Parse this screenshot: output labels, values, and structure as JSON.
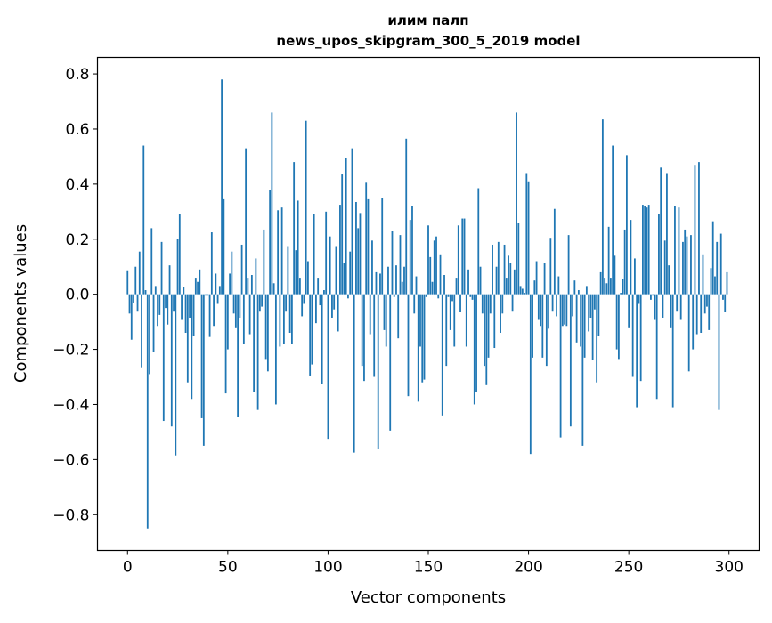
{
  "chart_data": {
    "type": "bar",
    "title_lines": [
      "илим палп",
      "news_upos_skipgram_300_5_2019 model"
    ],
    "xlabel": "Vector components",
    "ylabel": "Components values",
    "xlim": [
      -15,
      315
    ],
    "ylim": [
      -0.93,
      0.86
    ],
    "xticks": [
      0,
      50,
      100,
      150,
      200,
      250,
      300
    ],
    "xtick_labels": [
      "0",
      "50",
      "100",
      "150",
      "200",
      "250",
      "300"
    ],
    "yticks": [
      0.8,
      0.6,
      0.4,
      0.2,
      0.0,
      -0.2,
      -0.4,
      -0.6,
      -0.8
    ],
    "ytick_labels": [
      "0.8",
      "0.6",
      "0.4",
      "0.2",
      "0.0",
      "−0.2",
      "−0.4",
      "−0.6",
      "−0.8"
    ],
    "grid": false,
    "bar_color": "#1f77b4",
    "values": [
      0.087,
      -0.07,
      -0.165,
      -0.03,
      0.1,
      -0.06,
      0.155,
      -0.265,
      0.54,
      0.015,
      -0.85,
      -0.29,
      0.24,
      -0.21,
      0.03,
      -0.115,
      -0.075,
      0.19,
      -0.46,
      -0.05,
      -0.11,
      0.105,
      -0.48,
      -0.06,
      -0.585,
      0.2,
      0.29,
      -0.09,
      0.025,
      -0.14,
      -0.32,
      -0.085,
      -0.38,
      -0.15,
      0.06,
      0.045,
      0.09,
      -0.45,
      -0.55,
      -0.005,
      -0.005,
      -0.155,
      0.225,
      -0.115,
      0.075,
      -0.035,
      0.03,
      0.78,
      0.345,
      -0.36,
      -0.2,
      0.075,
      0.155,
      -0.07,
      -0.12,
      -0.445,
      -0.085,
      0.18,
      -0.18,
      0.53,
      0.06,
      -0.145,
      0.07,
      -0.355,
      0.13,
      -0.42,
      -0.06,
      -0.045,
      0.235,
      -0.235,
      -0.28,
      0.38,
      0.66,
      0.04,
      -0.4,
      0.305,
      -0.19,
      0.315,
      -0.18,
      -0.06,
      0.175,
      -0.14,
      -0.18,
      0.48,
      0.16,
      0.34,
      0.06,
      -0.08,
      -0.035,
      0.63,
      0.12,
      -0.295,
      -0.255,
      0.29,
      -0.105,
      0.06,
      -0.04,
      -0.325,
      0.015,
      0.3,
      -0.525,
      0.21,
      -0.085,
      -0.055,
      0.175,
      -0.135,
      0.325,
      0.435,
      0.115,
      0.495,
      -0.015,
      0.155,
      0.53,
      -0.575,
      0.335,
      0.24,
      0.295,
      -0.26,
      -0.315,
      0.405,
      0.345,
      -0.145,
      0.195,
      -0.3,
      0.08,
      -0.56,
      0.075,
      0.35,
      -0.13,
      -0.19,
      0.1,
      -0.495,
      0.23,
      -0.01,
      0.105,
      -0.16,
      0.215,
      0.045,
      0.1,
      0.565,
      -0.37,
      0.27,
      0.32,
      -0.07,
      0.065,
      -0.39,
      -0.19,
      -0.32,
      -0.31,
      -0.01,
      0.25,
      0.135,
      0.045,
      0.195,
      0.21,
      -0.015,
      0.145,
      -0.44,
      0.07,
      -0.26,
      -0.01,
      -0.13,
      -0.025,
      -0.19,
      0.06,
      0.25,
      -0.065,
      0.275,
      0.275,
      -0.19,
      0.09,
      -0.01,
      -0.02,
      -0.4,
      -0.355,
      0.385,
      0.1,
      -0.07,
      -0.26,
      -0.33,
      -0.23,
      -0.07,
      0.18,
      -0.195,
      0.1,
      0.19,
      -0.14,
      -0.07,
      0.18,
      0.06,
      0.14,
      0.115,
      -0.06,
      0.09,
      0.66,
      0.26,
      0.03,
      0.02,
      0.005,
      0.44,
      0.41,
      -0.58,
      -0.23,
      0.05,
      0.12,
      -0.09,
      -0.115,
      -0.23,
      0.115,
      -0.26,
      -0.125,
      0.205,
      -0.06,
      0.31,
      -0.08,
      0.065,
      -0.52,
      -0.115,
      -0.11,
      -0.115,
      0.215,
      -0.48,
      -0.08,
      0.05,
      -0.175,
      0.015,
      -0.19,
      -0.55,
      -0.23,
      0.03,
      -0.135,
      -0.085,
      -0.24,
      -0.055,
      -0.32,
      -0.15,
      0.08,
      0.635,
      0.06,
      0.04,
      0.245,
      0.06,
      0.54,
      0.14,
      -0.2,
      -0.235,
      0.005,
      0.055,
      0.235,
      0.505,
      -0.12,
      0.27,
      -0.3,
      0.13,
      -0.41,
      -0.035,
      -0.315,
      0.325,
      0.32,
      0.315,
      0.325,
      -0.02,
      -0.005,
      -0.09,
      -0.38,
      0.29,
      0.46,
      -0.085,
      0.195,
      0.44,
      0.105,
      -0.12,
      -0.41,
      0.32,
      -0.06,
      0.315,
      -0.09,
      0.19,
      0.235,
      0.21,
      -0.28,
      0.215,
      -0.2,
      0.47,
      -0.145,
      0.48,
      -0.14,
      0.145,
      -0.07,
      -0.045,
      -0.13,
      0.095,
      0.265,
      0.065,
      0.19,
      -0.42,
      0.22,
      -0.02,
      -0.065,
      0.08
    ]
  }
}
